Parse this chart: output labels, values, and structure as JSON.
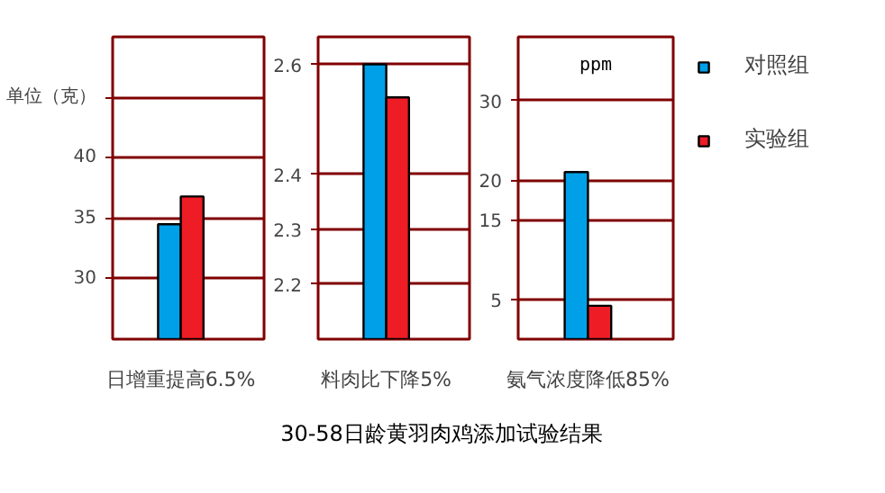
{
  "chart_data": [
    {
      "type": "bar",
      "categories": [
        "日增重提高6.5%"
      ],
      "ylim": [
        25,
        50
      ],
      "yticks": [
        30,
        35,
        40,
        {
          "value": 45,
          "label": "单位（克）"
        }
      ],
      "grid": "y",
      "series": [
        {
          "color": "#00a0e8",
          "values": [
            34.5
          ]
        },
        {
          "color": "#ee1c25",
          "values": [
            36.8
          ]
        }
      ]
    },
    {
      "type": "bar",
      "title": "30-58日龄黄羽肉鸡添加试验结果",
      "categories": [
        "料肉比下降5%"
      ],
      "ylim": [
        2.1,
        2.65
      ],
      "yticks": [
        2.2,
        2.3,
        2.4,
        2.6
      ],
      "grid": "y",
      "series": [
        {
          "color": "#00a0e8",
          "values": [
            2.6
          ]
        },
        {
          "color": "#ee1c25",
          "values": [
            2.54
          ]
        }
      ]
    },
    {
      "type": "bar",
      "categories": [
        "氨气浓度降低85%"
      ],
      "ylabel": "ppm",
      "ylim": [
        0,
        38
      ],
      "yticks": [
        5,
        15,
        20,
        30
      ],
      "grid": "y",
      "legend": "right",
      "series": [
        {
          "name": "对照组",
          "color": "#00a0e8",
          "values": [
            21
          ]
        },
        {
          "name": "实验组",
          "color": "#ee1c25",
          "values": [
            4.2
          ]
        }
      ]
    }
  ]
}
